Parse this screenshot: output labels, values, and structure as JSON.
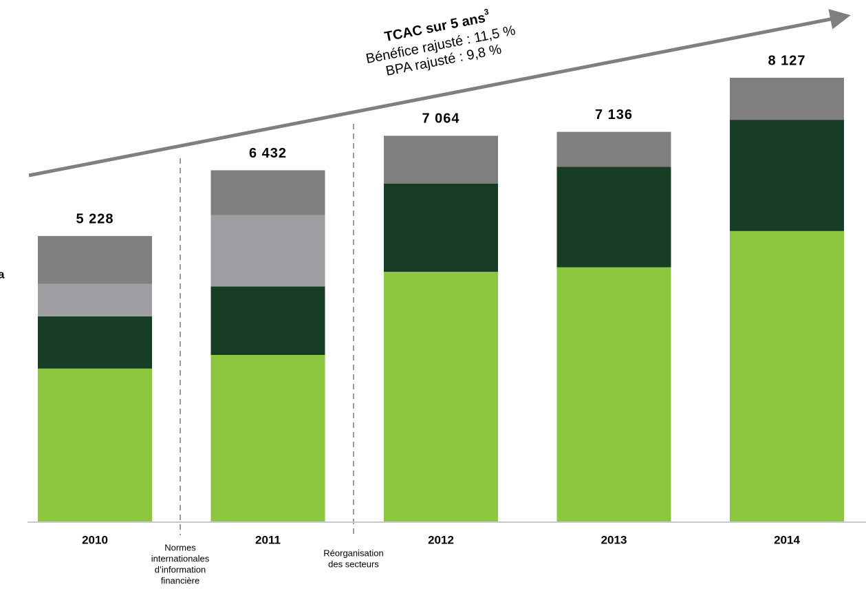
{
  "chart_data": {
    "type": "bar",
    "stacked": true,
    "categories": [
      "2010",
      "2011",
      "2012",
      "2013",
      "2014"
    ],
    "series": [
      {
        "color": "#8dc63f",
        "values": [
          2800,
          3050,
          4572,
          4655,
          5319
        ]
      },
      {
        "color": "#173d25",
        "values": [
          957,
          1255,
          1618,
          1842,
          2038
        ]
      },
      {
        "color": "#9e9ea2",
        "values": [
          595,
          1307,
          null,
          null,
          null
        ]
      },
      {
        "color": "#7f7f7f",
        "values": [
          876,
          820,
          874,
          639,
          770
        ]
      }
    ],
    "totals": [
      5228,
      6432,
      7064,
      7136,
      8127
    ],
    "total_labels": [
      "5 228",
      "6 432",
      "7 064",
      "7 136",
      "8 127"
    ],
    "cagr": {
      "title": "TCAC sur 5 ans",
      "superscript": "3",
      "lines": [
        "Bénéfice rajusté : 11,5 %",
        "BPA rajusté : 9,8 %"
      ]
    },
    "annotations": [
      {
        "lines": [
          "Normes",
          "internationales",
          "d’information",
          "financière"
        ]
      },
      {
        "lines": [
          "Réorganisation",
          "des secteurs"
        ]
      }
    ],
    "legend_fragment": "a"
  }
}
